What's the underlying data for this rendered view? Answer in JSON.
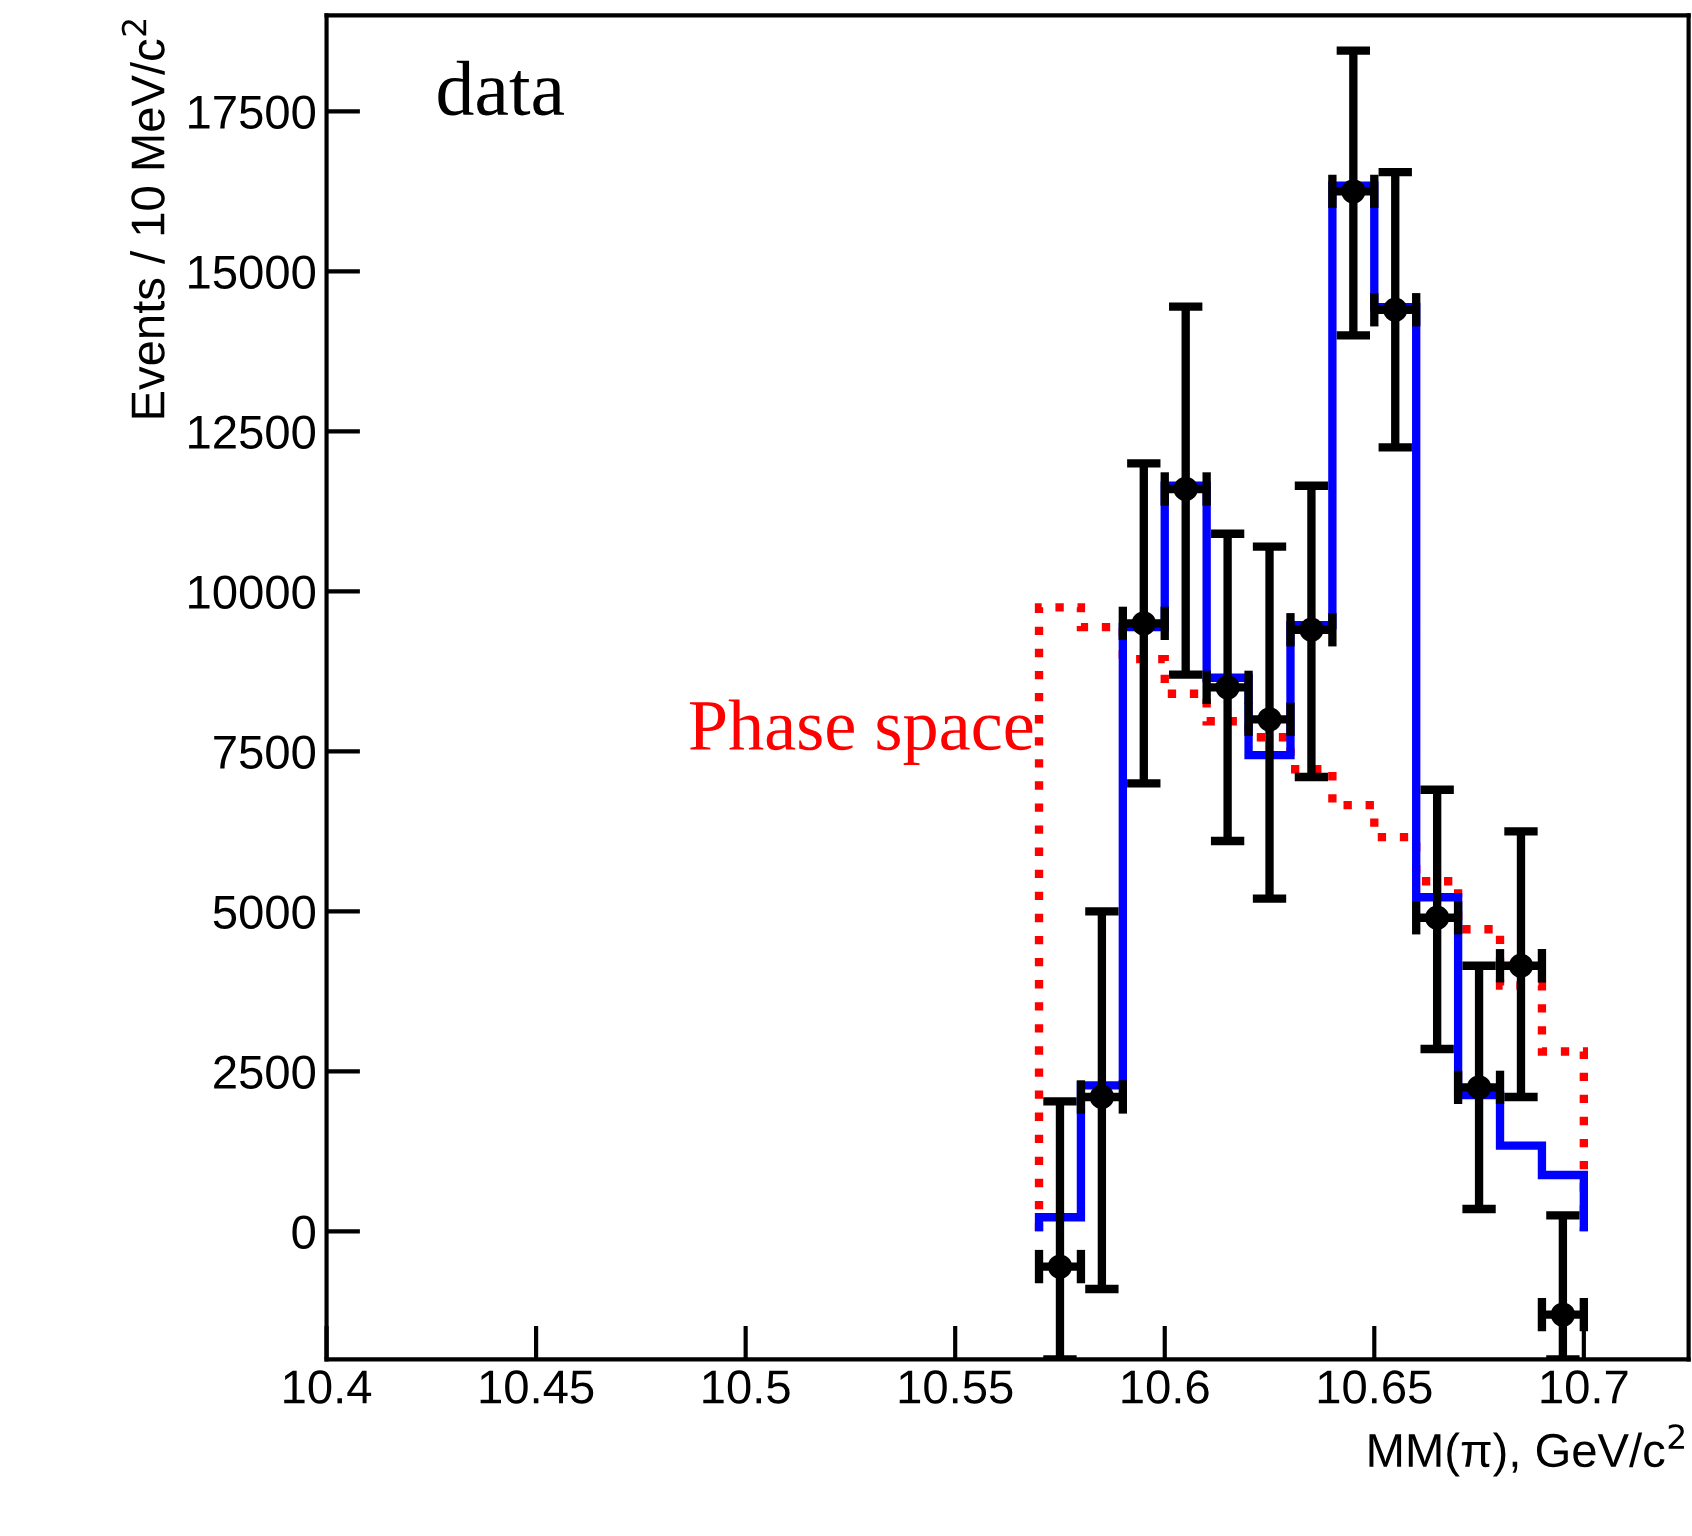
{
  "chart_data": {
    "type": "histogram",
    "xlabel": "MM(π), GeV/c$^{2}$",
    "ylabel": "Events / 10 MeV/c$^{2}$",
    "annotations": [
      "data"
    ],
    "xlim": [
      10.4,
      10.725
    ],
    "xticks": [
      10.4,
      10.45,
      10.5,
      10.55,
      10.6,
      10.65,
      10.7
    ],
    "ylim": [
      -2000,
      19000
    ],
    "yticks": [
      0,
      2500,
      5000,
      7500,
      10000,
      12500,
      15000,
      17500
    ],
    "grid": false,
    "legend": false,
    "bins": [
      10.57,
      10.58,
      10.59,
      10.6,
      10.61,
      10.62,
      10.63,
      10.64,
      10.65,
      10.66,
      10.67,
      10.68,
      10.69,
      10.7
    ],
    "series": [
      {
        "color": "#0000ff",
        "line_style": "solid",
        "values": [
          220,
          2280,
          9440,
          11650,
          8650,
          7440,
          9470,
          16340,
          14440,
          5220,
          2130,
          1340,
          880
        ]
      },
      {
        "name": "Phase space",
        "color": "#ff0000",
        "line_style": "dotted",
        "values": [
          9750,
          9440,
          8940,
          8400,
          7970,
          7720,
          7220,
          6660,
          6160,
          5470,
          4720,
          3840,
          2810
        ]
      },
      {
        "type": "scatter",
        "color": "#000000",
        "marker": "circle",
        "x": [
          10.575,
          10.585,
          10.595,
          10.605,
          10.615,
          10.625,
          10.635,
          10.645,
          10.655,
          10.665,
          10.675,
          10.685,
          10.695
        ],
        "values": [
          -550,
          2100,
          9500,
          11600,
          8500,
          8000,
          9400,
          16250,
          14400,
          4900,
          2250,
          4150,
          -1300
        ],
        "errors": [
          [
            -2000,
            2030
          ],
          [
            -900,
            5000
          ],
          [
            7000,
            12000
          ],
          [
            8700,
            14450
          ],
          [
            6100,
            10900
          ],
          [
            5200,
            10700
          ],
          [
            7100,
            11650
          ],
          [
            14000,
            18450
          ],
          [
            12250,
            16550
          ],
          [
            2850,
            6900
          ],
          [
            350,
            4150
          ],
          [
            2100,
            6250
          ],
          [
            -2000,
            250
          ]
        ],
        "xerrors": [
          0.005,
          0.005,
          0.005,
          0.005,
          0.005,
          0.005,
          0.005,
          0.005,
          0.005,
          0.005,
          0.005,
          0.005,
          0.005
        ]
      }
    ]
  }
}
